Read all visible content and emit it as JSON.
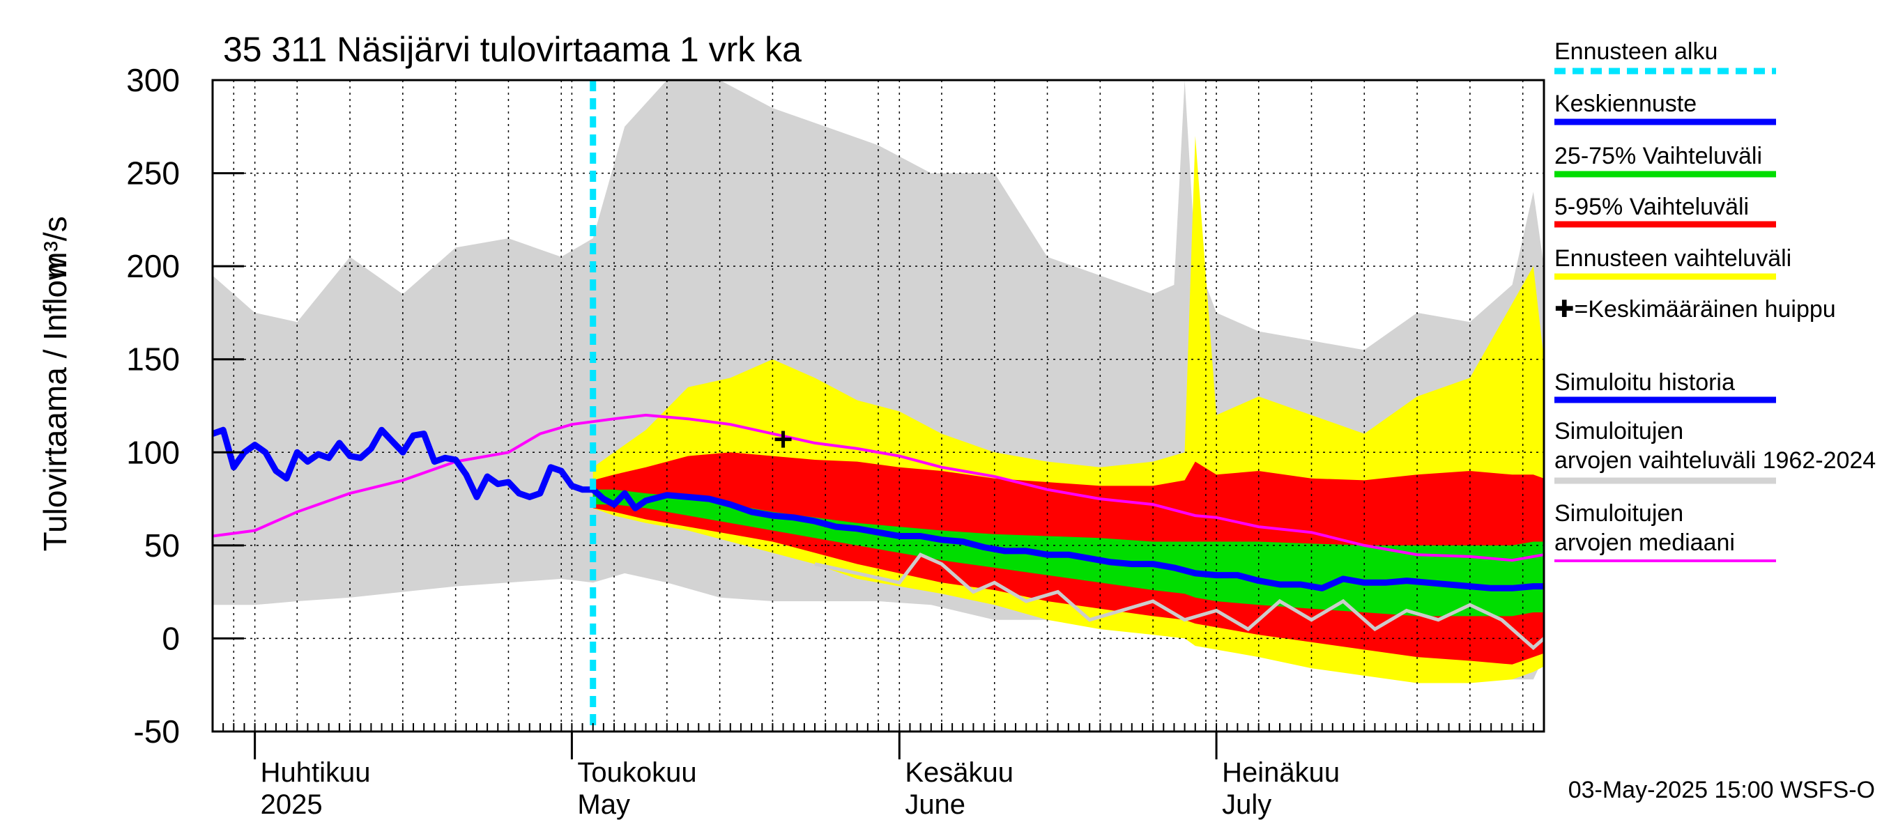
{
  "chart_data": {
    "type": "area",
    "title": "35 311 Näsijärvi tulovirtaama 1 vrk ka",
    "ylabel_fi": "Tulovirtaama / Inflow",
    "ylabel_unit": "m³/s",
    "ylim": [
      -50,
      300
    ],
    "yticks": [
      -50,
      0,
      50,
      100,
      150,
      200,
      250,
      300
    ],
    "xlim": [
      "2025-03-28",
      "2025-08-01"
    ],
    "forecast_start": "2025-05-03",
    "x_month_labels": [
      {
        "date": "2025-04-01",
        "line1": "Huhtikuu",
        "line2": "2025"
      },
      {
        "date": "2025-05-01",
        "line1": "Toukokuu",
        "line2": "May"
      },
      {
        "date": "2025-06-01",
        "line1": "Kesäkuu",
        "line2": "June"
      },
      {
        "date": "2025-07-01",
        "line1": "Heinäkuu",
        "line2": "July"
      }
    ],
    "timestamp": "03-May-2025 15:00 WSFS-O",
    "mean_peak_marker": {
      "date": "2025-05-21",
      "value": 107
    },
    "grid": true,
    "legend_position": "right",
    "legend": [
      {
        "label": "Ennusteen alku",
        "color": "#00e5ff",
        "style": "dashed"
      },
      {
        "label": "Keskiennuste",
        "color": "#0000ff",
        "style": "solid"
      },
      {
        "label": "25-75% Vaihteluväli",
        "color": "#00dd00",
        "style": "solid"
      },
      {
        "label": "5-95% Vaihteluväli",
        "color": "#ff0000",
        "style": "solid"
      },
      {
        "label": "Ennusteen vaihteluväli",
        "color": "#ffff00",
        "style": "solid"
      },
      {
        "label": "✚=Keskimääräinen huippu",
        "color": "",
        "style": "marker"
      },
      {
        "label": "Simuloitu historia",
        "color": "#0000ff",
        "style": "solid"
      },
      {
        "label": "Simuloitujen arvojen vaihteluväli 1962-2024",
        "color": "#d3d3d3",
        "style": "solid"
      },
      {
        "label": "Simuloitujen arvojen mediaani",
        "color": "#ff00ff",
        "style": "solid"
      }
    ],
    "colors": {
      "history_band": "#d3d3d3",
      "forecast_full": "#ffff00",
      "p5_95": "#ff0000",
      "p25_75": "#00dd00",
      "median_forecast": "#0000ff",
      "sim_history": "#0000ff",
      "sim_median": "#ff00ff",
      "forecast_start": "#00e5ff",
      "grey_line": "#cccccc"
    },
    "series": {
      "history_band_dates": [
        "2025-03-28",
        "2025-04-01",
        "2025-04-05",
        "2025-04-10",
        "2025-04-15",
        "2025-04-20",
        "2025-04-25",
        "2025-04-30",
        "2025-05-03",
        "2025-05-06",
        "2025-05-10",
        "2025-05-15",
        "2025-05-20",
        "2025-05-25",
        "2025-05-30",
        "2025-06-04",
        "2025-06-10",
        "2025-06-15",
        "2025-06-20",
        "2025-06-25",
        "2025-06-27",
        "2025-06-28",
        "2025-06-29",
        "2025-07-01",
        "2025-07-05",
        "2025-07-10",
        "2025-07-15",
        "2025-07-20",
        "2025-07-25",
        "2025-07-29",
        "2025-07-31",
        "2025-08-01"
      ],
      "history_band_upper": [
        195,
        175,
        170,
        205,
        185,
        210,
        215,
        205,
        215,
        275,
        300,
        300,
        285,
        275,
        265,
        250,
        250,
        205,
        195,
        185,
        190,
        300,
        205,
        175,
        165,
        160,
        155,
        175,
        170,
        190,
        240,
        200
      ],
      "history_band_lower": [
        18,
        18,
        20,
        22,
        25,
        28,
        30,
        32,
        30,
        35,
        30,
        22,
        20,
        20,
        20,
        18,
        10,
        10,
        8,
        5,
        4,
        2,
        2,
        2,
        -5,
        -10,
        -15,
        -18,
        -20,
        -22,
        -22,
        -10
      ],
      "forecast_dates": [
        "2025-05-03",
        "2025-05-05",
        "2025-05-08",
        "2025-05-12",
        "2025-05-16",
        "2025-05-20",
        "2025-05-24",
        "2025-05-28",
        "2025-06-01",
        "2025-06-05",
        "2025-06-10",
        "2025-06-15",
        "2025-06-20",
        "2025-06-25",
        "2025-06-28",
        "2025-06-29",
        "2025-07-01",
        "2025-07-05",
        "2025-07-10",
        "2025-07-15",
        "2025-07-20",
        "2025-07-25",
        "2025-07-29",
        "2025-07-31",
        "2025-08-01"
      ],
      "forecast_full_upper": [
        92,
        100,
        112,
        135,
        140,
        150,
        140,
        128,
        122,
        110,
        100,
        95,
        92,
        95,
        100,
        270,
        120,
        130,
        120,
        110,
        130,
        140,
        180,
        200,
        150
      ],
      "forecast_full_lower": [
        70,
        66,
        62,
        58,
        52,
        46,
        40,
        32,
        28,
        24,
        18,
        10,
        5,
        2,
        0,
        -4,
        -6,
        -10,
        -16,
        -20,
        -24,
        -24,
        -22,
        -18,
        -15
      ],
      "p5_95_upper": [
        85,
        88,
        92,
        98,
        100,
        98,
        96,
        95,
        92,
        90,
        86,
        84,
        82,
        82,
        85,
        95,
        88,
        90,
        86,
        85,
        88,
        90,
        88,
        88,
        86
      ],
      "p5_95_lower": [
        70,
        68,
        64,
        60,
        56,
        52,
        46,
        40,
        35,
        30,
        26,
        20,
        16,
        12,
        10,
        8,
        6,
        2,
        -2,
        -6,
        -10,
        -12,
        -14,
        -10,
        -8
      ],
      "p25_75_upper": [
        80,
        80,
        78,
        76,
        72,
        68,
        65,
        62,
        60,
        58,
        56,
        55,
        54,
        52,
        52,
        52,
        52,
        52,
        51,
        50,
        50,
        50,
        50,
        52,
        52
      ],
      "p25_75_lower": [
        72,
        72,
        70,
        66,
        62,
        58,
        54,
        50,
        46,
        42,
        38,
        34,
        30,
        26,
        24,
        22,
        20,
        18,
        16,
        14,
        12,
        12,
        12,
        14,
        14
      ],
      "median_dates": [
        "2025-05-03",
        "2025-05-04",
        "2025-05-05",
        "2025-05-06",
        "2025-05-07",
        "2025-05-08",
        "2025-05-10",
        "2025-05-12",
        "2025-05-14",
        "2025-05-16",
        "2025-05-18",
        "2025-05-20",
        "2025-05-22",
        "2025-05-24",
        "2025-05-26",
        "2025-05-28",
        "2025-05-30",
        "2025-06-01",
        "2025-06-03",
        "2025-06-05",
        "2025-06-07",
        "2025-06-09",
        "2025-06-11",
        "2025-06-13",
        "2025-06-15",
        "2025-06-17",
        "2025-06-19",
        "2025-06-21",
        "2025-06-23",
        "2025-06-25",
        "2025-06-27",
        "2025-06-29",
        "2025-07-01",
        "2025-07-03",
        "2025-07-05",
        "2025-07-07",
        "2025-07-09",
        "2025-07-11",
        "2025-07-13",
        "2025-07-15",
        "2025-07-17",
        "2025-07-19",
        "2025-07-21",
        "2025-07-23",
        "2025-07-25",
        "2025-07-27",
        "2025-07-29",
        "2025-07-31",
        "2025-08-01"
      ],
      "median_values": [
        80,
        75,
        72,
        78,
        70,
        74,
        77,
        76,
        75,
        72,
        68,
        66,
        65,
        63,
        60,
        59,
        57,
        55,
        55,
        53,
        52,
        49,
        47,
        47,
        45,
        45,
        43,
        41,
        40,
        40,
        38,
        35,
        34,
        34,
        31,
        29,
        29,
        27,
        32,
        30,
        30,
        31,
        30,
        29,
        28,
        27,
        27,
        28,
        28
      ],
      "sim_history_dates": [
        "2025-03-28",
        "2025-03-29",
        "2025-03-30",
        "2025-03-31",
        "2025-04-01",
        "2025-04-02",
        "2025-04-03",
        "2025-04-04",
        "2025-04-05",
        "2025-04-06",
        "2025-04-07",
        "2025-04-08",
        "2025-04-09",
        "2025-04-10",
        "2025-04-11",
        "2025-04-12",
        "2025-04-13",
        "2025-04-14",
        "2025-04-15",
        "2025-04-16",
        "2025-04-17",
        "2025-04-18",
        "2025-04-19",
        "2025-04-20",
        "2025-04-21",
        "2025-04-22",
        "2025-04-23",
        "2025-04-24",
        "2025-04-25",
        "2025-04-26",
        "2025-04-27",
        "2025-04-28",
        "2025-04-29",
        "2025-04-30",
        "2025-05-01",
        "2025-05-02",
        "2025-05-03"
      ],
      "sim_history_values": [
        110,
        112,
        92,
        100,
        104,
        100,
        90,
        86,
        100,
        95,
        99,
        97,
        105,
        98,
        97,
        102,
        112,
        106,
        100,
        109,
        110,
        95,
        97,
        96,
        88,
        76,
        87,
        83,
        84,
        78,
        76,
        78,
        92,
        90,
        82,
        80,
        80
      ],
      "sim_median_dates": [
        "2025-03-28",
        "2025-04-01",
        "2025-04-05",
        "2025-04-10",
        "2025-04-15",
        "2025-04-20",
        "2025-04-25",
        "2025-04-28",
        "2025-05-01",
        "2025-05-05",
        "2025-05-08",
        "2025-05-12",
        "2025-05-16",
        "2025-05-20",
        "2025-05-24",
        "2025-05-28",
        "2025-06-01",
        "2025-06-05",
        "2025-06-10",
        "2025-06-15",
        "2025-06-20",
        "2025-06-25",
        "2025-06-29",
        "2025-07-01",
        "2025-07-05",
        "2025-07-10",
        "2025-07-15",
        "2025-07-20",
        "2025-07-25",
        "2025-07-29",
        "2025-08-01"
      ],
      "sim_median_values": [
        55,
        58,
        68,
        78,
        85,
        95,
        100,
        110,
        115,
        118,
        120,
        118,
        115,
        110,
        105,
        102,
        98,
        92,
        87,
        80,
        75,
        72,
        66,
        65,
        60,
        57,
        50,
        45,
        44,
        42,
        45
      ],
      "grey_line_dates": [
        "2025-05-24",
        "2025-05-28",
        "2025-06-01",
        "2025-06-03",
        "2025-06-05",
        "2025-06-08",
        "2025-06-10",
        "2025-06-13",
        "2025-06-16",
        "2025-06-19",
        "2025-06-22",
        "2025-06-25",
        "2025-06-28",
        "2025-07-01",
        "2025-07-04",
        "2025-07-07",
        "2025-07-10",
        "2025-07-13",
        "2025-07-16",
        "2025-07-19",
        "2025-07-22",
        "2025-07-25",
        "2025-07-28",
        "2025-07-31",
        "2025-08-01"
      ],
      "grey_line_values": [
        40,
        35,
        30,
        45,
        40,
        25,
        30,
        20,
        25,
        10,
        15,
        20,
        10,
        15,
        5,
        20,
        10,
        20,
        5,
        15,
        10,
        18,
        10,
        -5,
        0
      ]
    }
  }
}
